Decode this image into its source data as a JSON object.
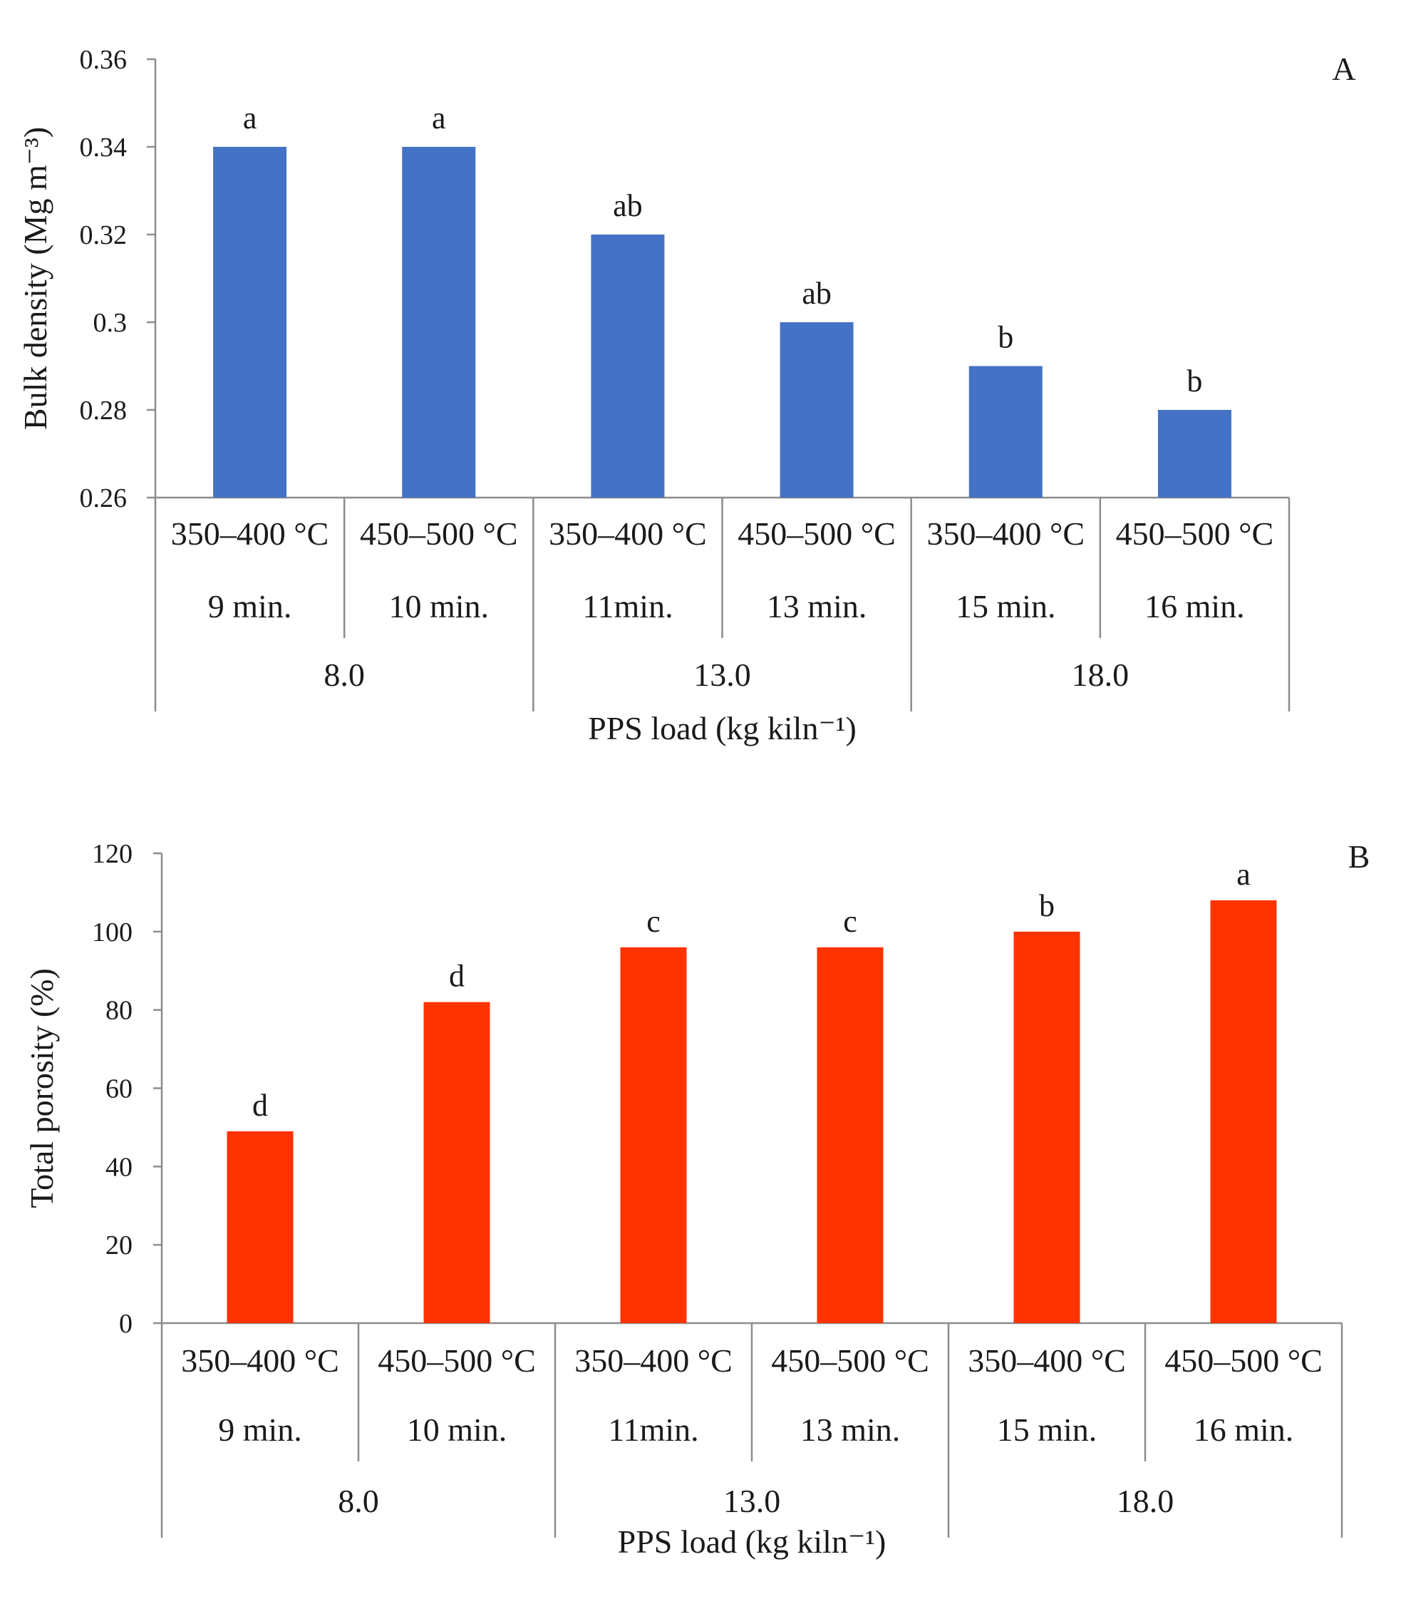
{
  "chart_data": [
    {
      "type": "bar",
      "panel_label": "A",
      "color": "#4472C4",
      "ylabel": "Bulk density (Mg m⁻³)",
      "xlabel": "PPS load (kg kiln⁻¹)",
      "ylim": [
        0.26,
        0.36
      ],
      "yticks": [
        0.26,
        0.28,
        0.3,
        0.32,
        0.34,
        0.36
      ],
      "ytick_labels": [
        "0.26",
        "0.28",
        "0.3",
        "0.32",
        "0.34",
        "0.36"
      ],
      "grid": false,
      "categories": [
        {
          "temp": "350–400 °C",
          "time": "9 min."
        },
        {
          "temp": "450–500 °C",
          "time": "10 min."
        },
        {
          "temp": "350–400 °C",
          "time": "11min."
        },
        {
          "temp": "450–500 °C",
          "time": "13 min."
        },
        {
          "temp": "350–400 °C",
          "time": "15 min."
        },
        {
          "temp": "450–500 °C",
          "time": "16 min."
        }
      ],
      "groups": [
        "8.0",
        "13.0",
        "18.0"
      ],
      "values": [
        0.34,
        0.34,
        0.32,
        0.3,
        0.29,
        0.28
      ],
      "significance": [
        "a",
        "a",
        "ab",
        "ab",
        "b",
        "b"
      ]
    },
    {
      "type": "bar",
      "panel_label": "B",
      "color": "#FF3300",
      "ylabel": "Total porosity (%)",
      "xlabel": "PPS load (kg kiln⁻¹)",
      "ylim": [
        0,
        120
      ],
      "yticks": [
        0,
        20,
        40,
        60,
        80,
        100,
        120
      ],
      "ytick_labels": [
        "0",
        "20",
        "40",
        "60",
        "80",
        "100",
        "120"
      ],
      "grid": false,
      "categories": [
        {
          "temp": "350–400 °C",
          "time": "9 min."
        },
        {
          "temp": "450–500 °C",
          "time": "10 min."
        },
        {
          "temp": "350–400 °C",
          "time": "11min."
        },
        {
          "temp": "450–500 °C",
          "time": "13 min."
        },
        {
          "temp": "350–400 °C",
          "time": "15 min."
        },
        {
          "temp": "450–500 °C",
          "time": "16 min."
        }
      ],
      "groups": [
        "8.0",
        "13.0",
        "18.0"
      ],
      "values": [
        49,
        82,
        96,
        96,
        100,
        108
      ],
      "significance": [
        "d",
        "d",
        "c",
        "c",
        "b",
        "a"
      ]
    }
  ]
}
